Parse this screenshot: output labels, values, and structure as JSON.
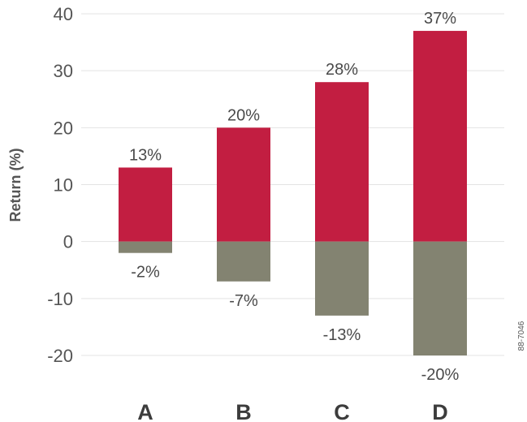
{
  "chart_data": {
    "type": "bar",
    "stacked": true,
    "categories": [
      "A",
      "B",
      "C",
      "D"
    ],
    "series": [
      {
        "values": [
          13,
          20,
          28,
          37
        ],
        "color": "#c21e41",
        "labels": [
          "13%",
          "20%",
          "28%",
          "37%"
        ]
      },
      {
        "values": [
          -2,
          -7,
          -13,
          -20
        ],
        "color": "#838371",
        "labels": [
          "-2%",
          "-7%",
          "-13%",
          "-20%"
        ]
      }
    ],
    "ylabel": "Return (%)",
    "ylim": [
      -20,
      40
    ],
    "yticks": [
      40,
      30,
      20,
      10,
      0,
      -10,
      -20
    ],
    "grid": true,
    "figure_code": "88-7046"
  }
}
